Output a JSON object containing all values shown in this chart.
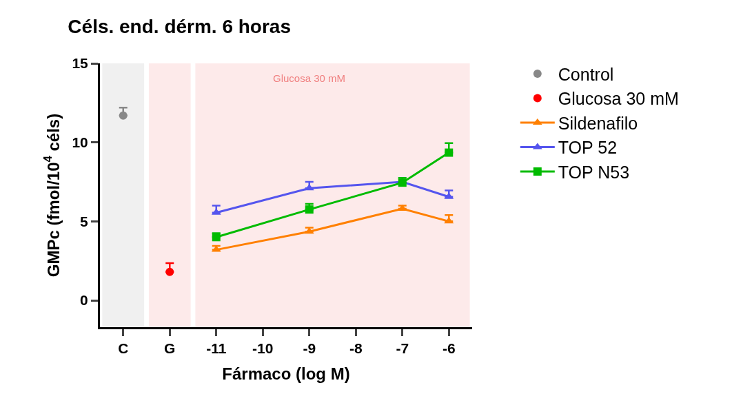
{
  "chart_data": {
    "type": "line",
    "title": "Céls. end. dérm. 6 horas",
    "xlabel": "Fármaco (log M)",
    "ylabel": "GMPc (fmol/10$^{4}$ céls)",
    "categories": [
      "C",
      "G",
      "-11",
      "-10",
      "-9",
      "-8",
      "-7",
      "-6"
    ],
    "series": [
      {
        "name": "Control",
        "type": "scatter",
        "marker": "circle",
        "color": "#888888",
        "values": [
          11.7,
          null,
          null,
          null,
          null,
          null,
          null,
          null
        ],
        "errors": [
          [
            11.7,
            12.2
          ],
          null,
          null,
          null,
          null,
          null,
          null,
          null
        ]
      },
      {
        "name": "Glucosa 30 mM",
        "type": "scatter",
        "marker": "circle",
        "color": "#ff0000",
        "values": [
          null,
          1.8,
          null,
          null,
          null,
          null,
          null,
          null
        ],
        "errors": [
          null,
          [
            1.8,
            2.35
          ],
          null,
          null,
          null,
          null,
          null,
          null
        ]
      },
      {
        "name": "Sildenafilo",
        "marker": "triangle",
        "color": "#ff8000",
        "values": [
          null,
          null,
          3.2,
          null,
          4.35,
          null,
          5.8,
          5.0
        ],
        "errors": [
          null,
          null,
          [
            3.2,
            3.45
          ],
          null,
          [
            4.35,
            4.6
          ],
          null,
          [
            5.8,
            6.0
          ],
          [
            5.0,
            5.4
          ]
        ]
      },
      {
        "name": "TOP 52",
        "marker": "triangle",
        "color": "#5555ee",
        "values": [
          null,
          null,
          5.55,
          null,
          7.1,
          null,
          7.5,
          6.55
        ],
        "errors": [
          null,
          null,
          [
            5.55,
            6.0
          ],
          null,
          [
            7.1,
            7.5
          ],
          null,
          null,
          [
            6.55,
            6.95
          ]
        ]
      },
      {
        "name": "TOP N53",
        "marker": "square",
        "color": "#00bb00",
        "values": [
          null,
          null,
          4.0,
          null,
          5.75,
          null,
          7.45,
          9.35
        ],
        "errors": [
          null,
          null,
          [
            4.0,
            4.25
          ],
          null,
          [
            5.75,
            6.1
          ],
          null,
          [
            7.45,
            7.75
          ],
          [
            9.35,
            9.95
          ]
        ]
      }
    ],
    "bands": [
      {
        "axis": "x",
        "from": "C",
        "to": "C",
        "color": "#f0f0f0"
      },
      {
        "axis": "x",
        "from": "G",
        "to": "G",
        "color": "#fdeaea"
      },
      {
        "axis": "x",
        "from": "-11",
        "to": "-6",
        "color": "#fdeaea",
        "label": "Glucosa 30 mM"
      }
    ],
    "ylim": [
      -1.7,
      15
    ],
    "yticks": [
      0,
      5,
      10,
      15
    ],
    "grid": false,
    "legend": "top right"
  }
}
